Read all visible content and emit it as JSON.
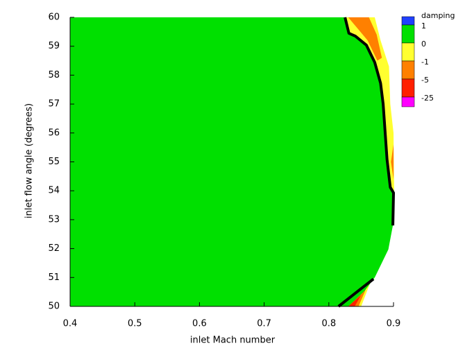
{
  "chart_data": {
    "type": "contour",
    "xlabel": "inlet Mach number",
    "ylabel": "inlet flow angle (degrees)",
    "xlim": [
      0.4,
      0.9
    ],
    "ylim": [
      50,
      60
    ],
    "xticks": [
      0.4,
      0.5,
      0.6,
      0.7,
      0.8,
      0.9
    ],
    "yticks": [
      50,
      51,
      52,
      53,
      54,
      55,
      56,
      57,
      58,
      59,
      60
    ],
    "legend": {
      "title": "damping",
      "colors": [
        "#2040ff",
        "#00e000",
        "#ffff30",
        "#ff8000",
        "#ff2000",
        "#ff00ff"
      ],
      "levels": [
        1,
        0,
        -1,
        -5,
        -25
      ]
    },
    "regions": [
      {
        "color": "#ffff30",
        "points": [
          [
            0.82,
            60
          ],
          [
            0.871,
            60
          ],
          [
            0.88,
            59.2
          ],
          [
            0.893,
            58.3
          ],
          [
            0.895,
            57
          ],
          [
            0.9,
            56
          ],
          [
            0.901,
            54
          ],
          [
            0.898,
            52.8
          ],
          [
            0.85,
            50
          ],
          [
            0.82,
            50
          ]
        ]
      },
      {
        "color": "#ff8000",
        "points": [
          [
            0.83,
            60
          ],
          [
            0.862,
            60
          ],
          [
            0.874,
            59.4
          ],
          [
            0.882,
            58.6
          ],
          [
            0.875,
            58.5
          ],
          [
            0.86,
            59.2
          ],
          [
            0.845,
            59.6
          ]
        ]
      },
      {
        "color": "#ff8000",
        "points": [
          [
            0.9,
            55.6
          ],
          [
            0.9,
            54.4
          ],
          [
            0.896,
            55
          ]
        ]
      },
      {
        "color": "#ff8000",
        "points": [
          [
            0.828,
            50
          ],
          [
            0.846,
            50
          ],
          [
            0.863,
            50.9
          ],
          [
            0.845,
            50.4
          ]
        ]
      },
      {
        "color": "#ff2000",
        "points": [
          [
            0.83,
            50
          ],
          [
            0.84,
            50
          ],
          [
            0.85,
            50.4
          ]
        ]
      },
      {
        "color": "#00e000",
        "points": [
          [
            0.4,
            50
          ],
          [
            0.4,
            60
          ],
          [
            0.825,
            60
          ],
          [
            0.831,
            59.45
          ],
          [
            0.841,
            59.35
          ],
          [
            0.858,
            59.04
          ],
          [
            0.871,
            58.44
          ],
          [
            0.874,
            58.2
          ],
          [
            0.88,
            57.72
          ],
          [
            0.884,
            57.0
          ],
          [
            0.887,
            56.04
          ],
          [
            0.89,
            55.08
          ],
          [
            0.895,
            54.12
          ],
          [
            0.899,
            53.93
          ],
          [
            0.899,
            52.8
          ],
          [
            0.892,
            51.97
          ],
          [
            0.871,
            51.0
          ],
          [
            0.855,
            50.53
          ],
          [
            0.83,
            50
          ]
        ]
      }
    ],
    "contour_lines": [
      {
        "color": "#000000",
        "points": [
          [
            0.825,
            60
          ],
          [
            0.831,
            59.45
          ],
          [
            0.841,
            59.35
          ],
          [
            0.858,
            59.04
          ],
          [
            0.871,
            58.44
          ],
          [
            0.874,
            58.2
          ],
          [
            0.88,
            57.72
          ],
          [
            0.884,
            57.0
          ],
          [
            0.887,
            56.04
          ],
          [
            0.89,
            55.08
          ],
          [
            0.895,
            54.12
          ],
          [
            0.9,
            53.93
          ],
          [
            0.899,
            52.8
          ]
        ]
      },
      {
        "color": "#000000",
        "points": [
          [
            0.815,
            50
          ],
          [
            0.869,
            50.95
          ]
        ]
      }
    ]
  }
}
